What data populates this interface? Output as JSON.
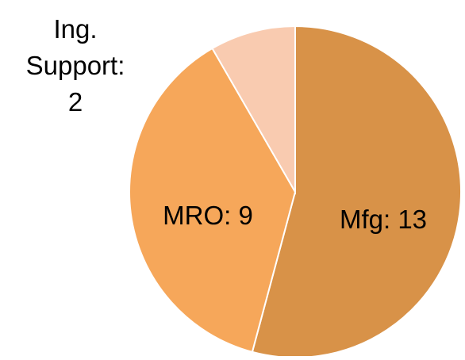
{
  "chart_data": {
    "type": "pie",
    "title": "",
    "slices": [
      {
        "label": "Mfg",
        "value": 13,
        "display": "Mfg: 13",
        "color": "#D89248"
      },
      {
        "label": "MRO",
        "value": 9,
        "display": "MRO: 9",
        "color": "#F6A75A"
      },
      {
        "label": "Ing. Support",
        "value": 2,
        "display_lines": [
          "Ing.",
          "Support:",
          "2"
        ],
        "color": "#F9CBB0"
      }
    ],
    "slice_border_color": "#FFFFFF",
    "start_angle": "12 o'clock",
    "direction": "clockwise",
    "legend": "none"
  }
}
